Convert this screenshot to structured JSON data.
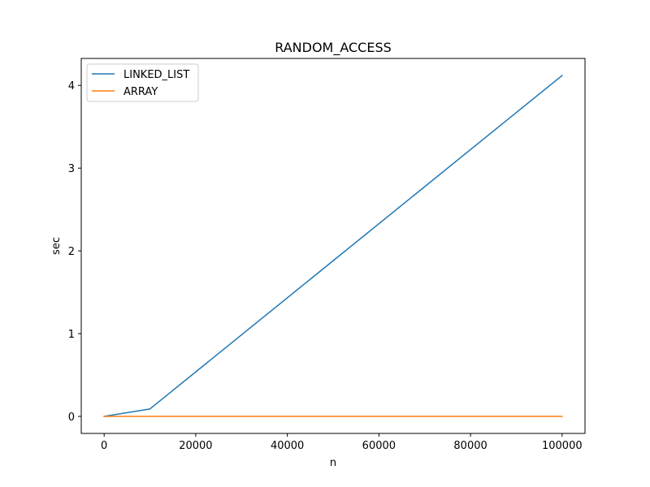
{
  "chart_data": {
    "type": "line",
    "title": "RANDOM_ACCESS",
    "xlabel": "n",
    "ylabel": "sec",
    "xlim": [
      -5000,
      105000
    ],
    "ylim": [
      -0.206,
      4.326
    ],
    "xticks": [
      0,
      20000,
      40000,
      60000,
      80000,
      100000
    ],
    "yticks": [
      0,
      1,
      2,
      3,
      4
    ],
    "grid": false,
    "legend_position": "top-left",
    "series": [
      {
        "name": "LINKED_LIST",
        "color": "#1f77b4",
        "x": [
          0,
          10000,
          100000
        ],
        "y": [
          0.0,
          0.09,
          4.12
        ]
      },
      {
        "name": "ARRAY",
        "color": "#ff7f0e",
        "x": [
          0,
          10000,
          100000
        ],
        "y": [
          0.0,
          0.0,
          0.0
        ]
      }
    ]
  }
}
